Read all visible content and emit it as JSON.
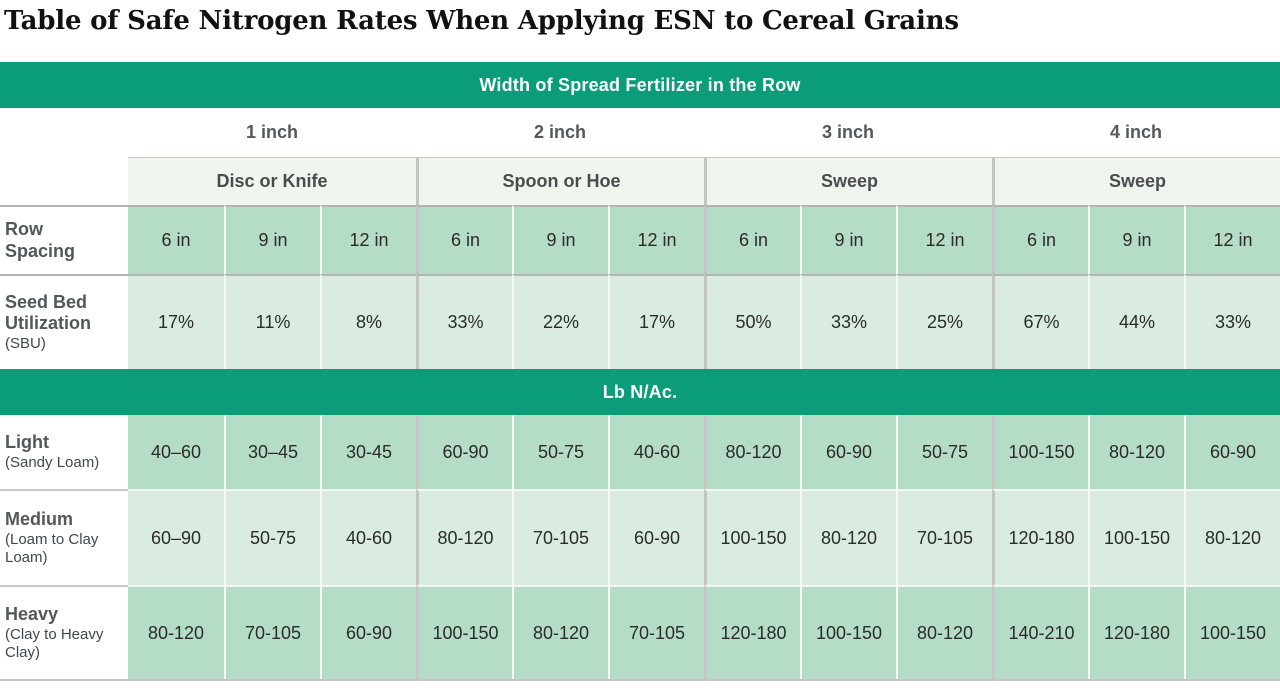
{
  "page_title": "Table of Safe Nitrogen Rates When Applying ESN to Cereal Grains",
  "table": {
    "header_top": "Width of Spread Fertilizer in the Row",
    "header_units": "Lb N/Ac.",
    "width_groups": [
      {
        "label": "1 inch",
        "tool": "Disc or Knife"
      },
      {
        "label": "2 inch",
        "tool": "Spoon or Hoe"
      },
      {
        "label": "3 inch",
        "tool": "Sweep"
      },
      {
        "label": "4 inch",
        "tool": "Sweep"
      }
    ],
    "row_spacing": {
      "label": "Row Spacing",
      "values": [
        "6 in",
        "9 in",
        "12 in",
        "6 in",
        "9 in",
        "12 in",
        "6 in",
        "9 in",
        "12 in",
        "6 in",
        "9 in",
        "12 in"
      ]
    },
    "sbu": {
      "label": "Seed Bed Utilization",
      "sublabel": "(SBU)",
      "values": [
        "17%",
        "11%",
        "8%",
        "33%",
        "22%",
        "17%",
        "50%",
        "33%",
        "25%",
        "67%",
        "44%",
        "33%"
      ]
    },
    "soil_rows": [
      {
        "label": "Light",
        "sublabel": "(Sandy Loam)",
        "values": [
          "40–60",
          "30–45",
          "30-45",
          "60-90",
          "50-75",
          "40-60",
          "80-120",
          "60-90",
          "50-75",
          "100-150",
          "80-120",
          "60-90"
        ]
      },
      {
        "label": "Medium",
        "sublabel": "(Loam to Clay Loam)",
        "values": [
          "60–90",
          "50-75",
          "40-60",
          "80-120",
          "70-105",
          "60-90",
          "100-150",
          "80-120",
          "70-105",
          "120-180",
          "100-150",
          "80-120"
        ]
      },
      {
        "label": "Heavy",
        "sublabel": "(Clay to Heavy Clay)",
        "values": [
          "80-120",
          "70-105",
          "60-90",
          "100-150",
          "80-120",
          "70-105",
          "120-180",
          "100-150",
          "80-120",
          "140-210",
          "120-180",
          "100-150"
        ]
      }
    ],
    "colors": {
      "accent_green": "#0b9c7a",
      "cell_medium_green": "#b5dcc7",
      "cell_light_green": "#d9ecdf",
      "tool_row_green": "#f0f5ee",
      "rule_gray": "#b3b3b3",
      "divider_gray": "#c5c5c5",
      "label_text": "#54565a",
      "value_text": "#2b2b2b"
    }
  }
}
